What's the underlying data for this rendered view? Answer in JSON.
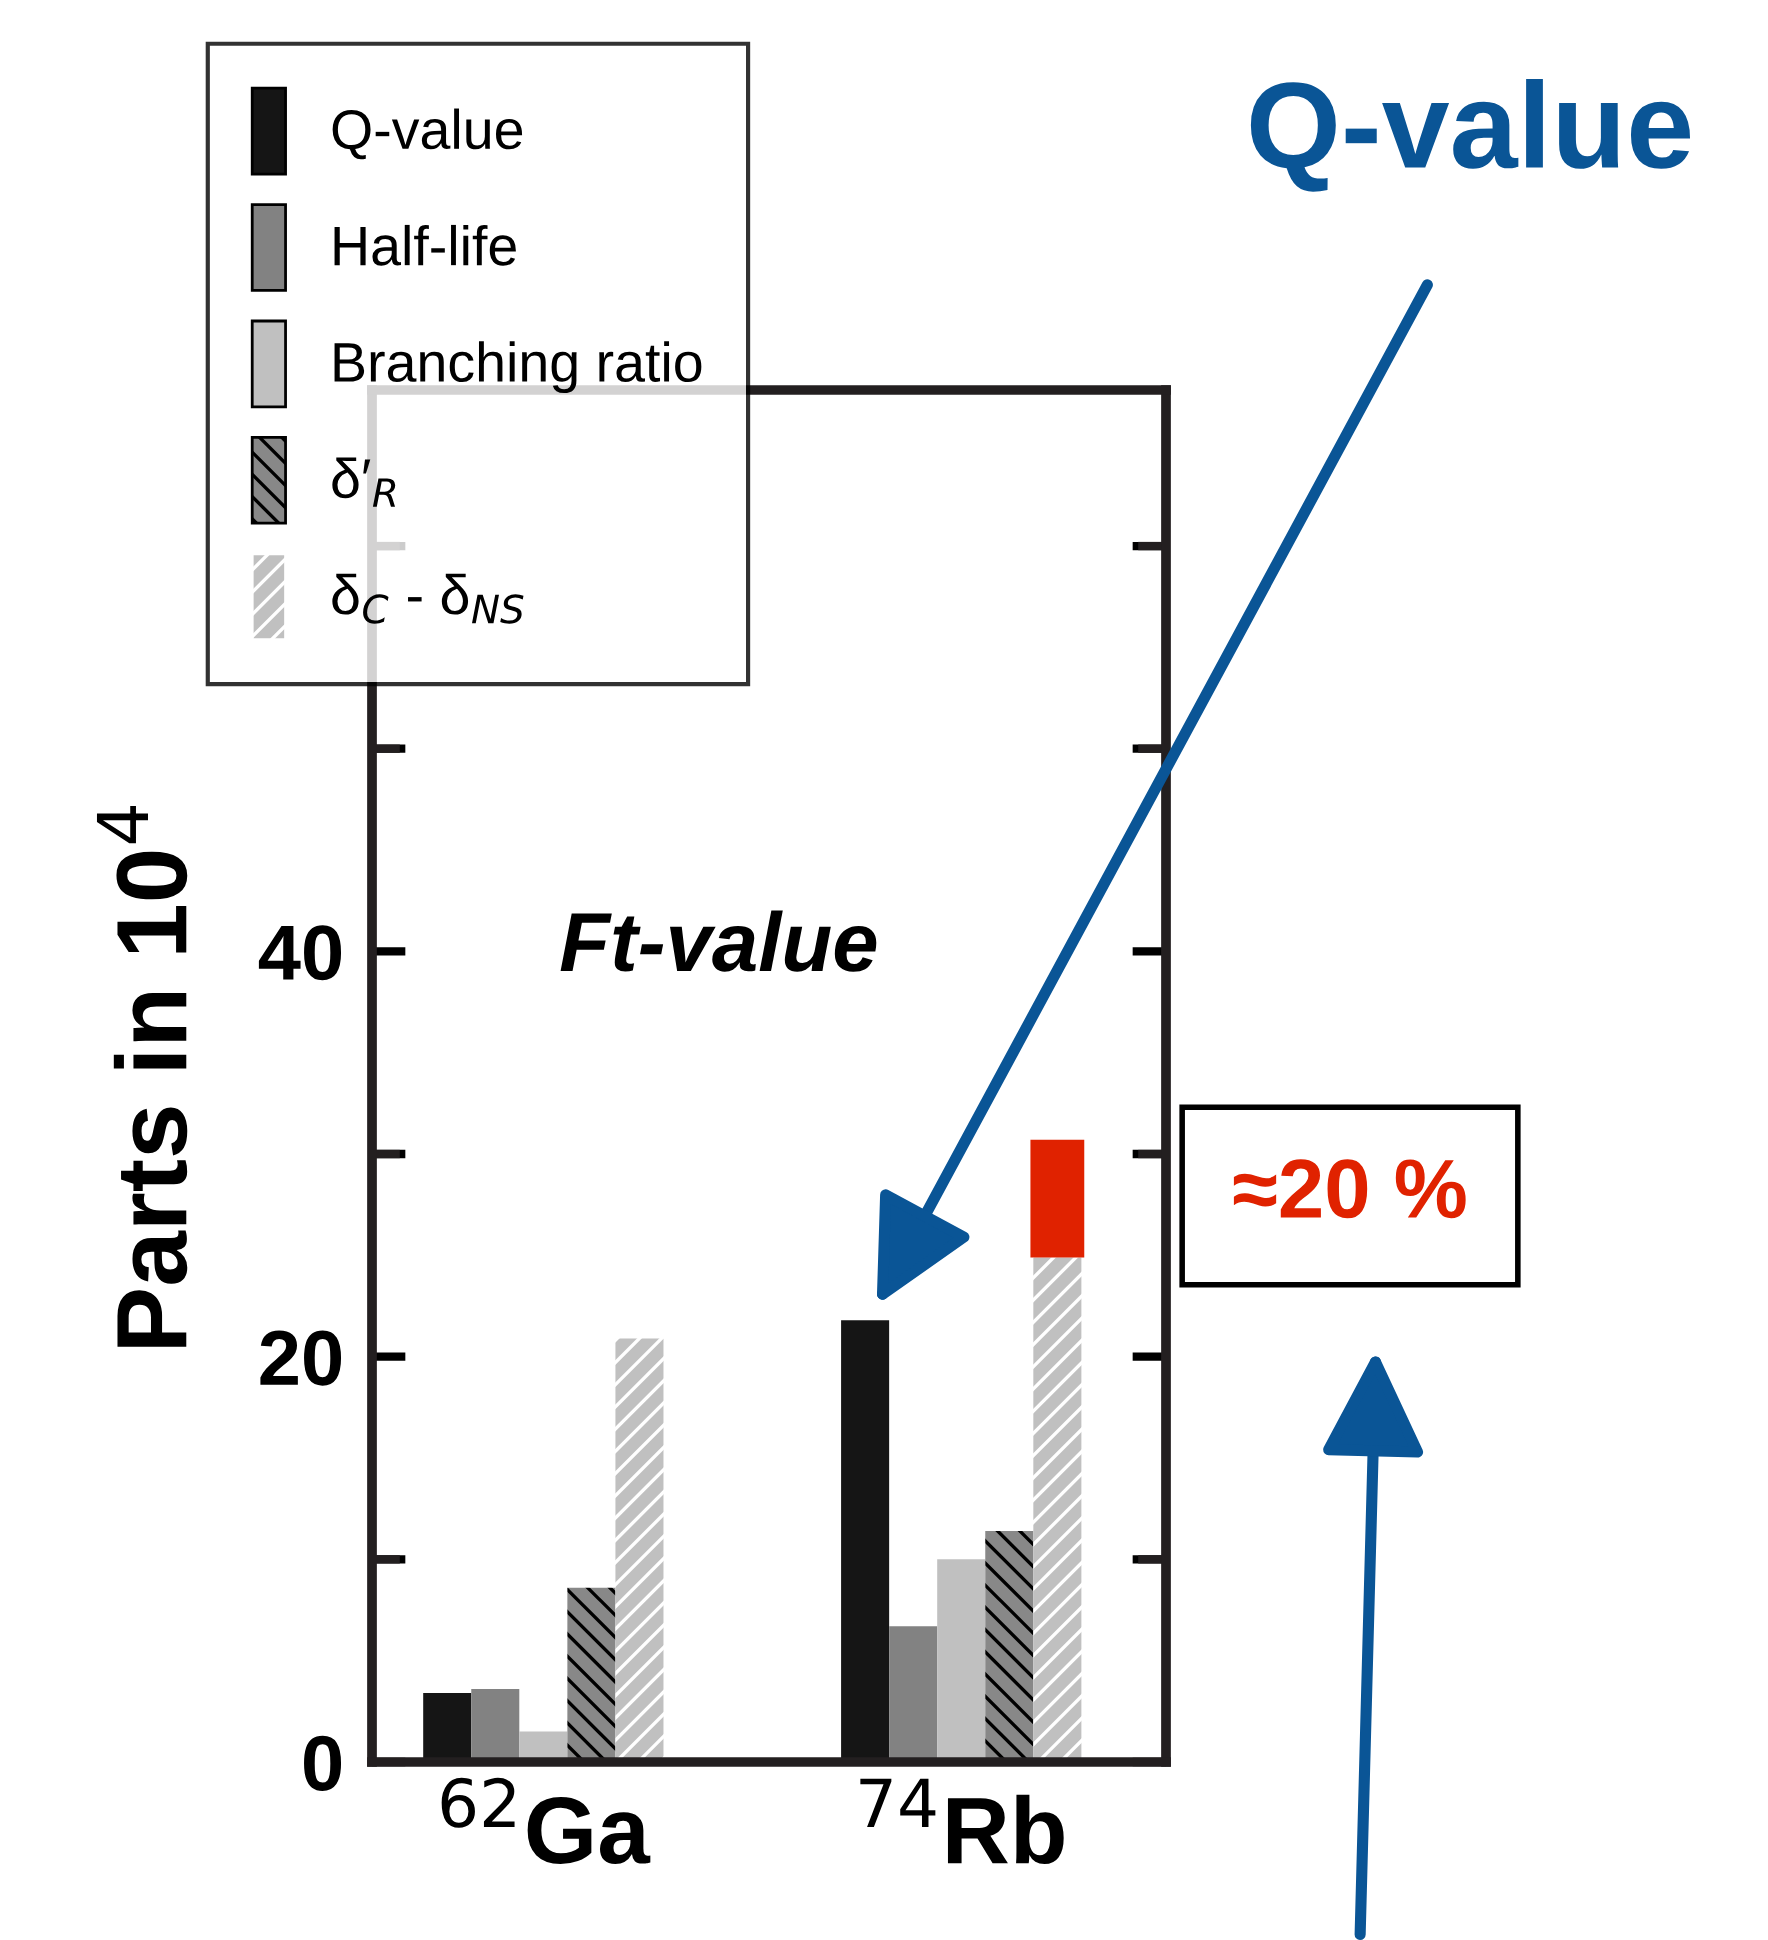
{
  "chart_data": {
    "type": "bar",
    "ylabel": "Parts in 10$^{4}$",
    "categories": [
      "$^{62}$Ga",
      "$^{74}$Rb"
    ],
    "series": [
      {
        "name": "Q-value",
        "color": "#151515",
        "values": [
          3.4,
          21.8
        ]
      },
      {
        "name": "Half-life",
        "color": "#828282",
        "values": [
          3.6,
          6.7
        ]
      },
      {
        "name": "Branching ratio",
        "color": "#c0c0c0",
        "values": [
          1.5,
          10.0
        ]
      },
      {
        "name": "δ′$_{R}$",
        "color": "#888888",
        "values": [
          8.6,
          11.4
        ]
      },
      {
        "name": "δ$_{C}$ - δ$_{NS}$",
        "color": "#c0c0c0",
        "values": [
          20.9,
          24.9
        ]
      },
      {
        "color": "#e02200",
        "base": [
          null,
          24.9
        ],
        "values": [
          null,
          5.8
        ]
      }
    ],
    "ylim": [
      0,
      67.7
    ],
    "yticks": [
      0,
      {
        "value": 10,
        "label": null
      },
      20,
      {
        "value": 30,
        "label": null
      },
      40,
      {
        "value": 50,
        "label": null
      },
      {
        "value": 60,
        "label": null
      }
    ],
    "legend": "top left",
    "annotations": [
      "Ft-value",
      "Q-value",
      "≈20 %"
    ]
  }
}
